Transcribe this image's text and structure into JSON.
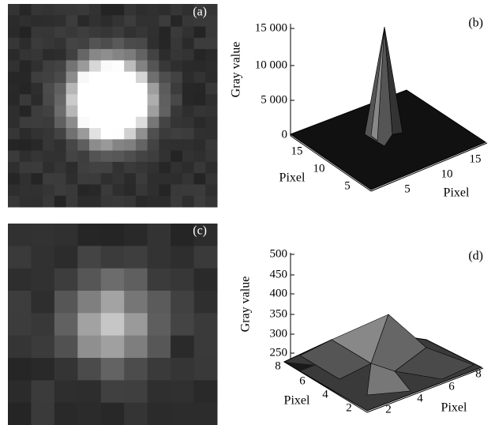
{
  "panels": [
    {
      "label": "(a)"
    },
    {
      "label": "(b)",
      "z_axis_label": "Gray value",
      "z_ticks": [
        "15 000",
        "10 000",
        "5 000",
        "0"
      ],
      "left_axis_label": "Pixel",
      "left_ticks": [
        "15",
        "10",
        "5"
      ],
      "right_axis_label": "Pixel",
      "right_ticks": [
        "5",
        "10",
        "15"
      ]
    },
    {
      "label": "(c)"
    },
    {
      "label": "(d)",
      "z_axis_label": "Gray value",
      "z_ticks": [
        "500",
        "450",
        "400",
        "350",
        "300",
        "250"
      ],
      "left_axis_label": "Pixel",
      "left_ticks": [
        "8",
        "6",
        "4",
        "2"
      ],
      "right_axis_label": "Pixel",
      "right_ticks": [
        "2",
        "4",
        "6",
        "8"
      ]
    }
  ]
}
